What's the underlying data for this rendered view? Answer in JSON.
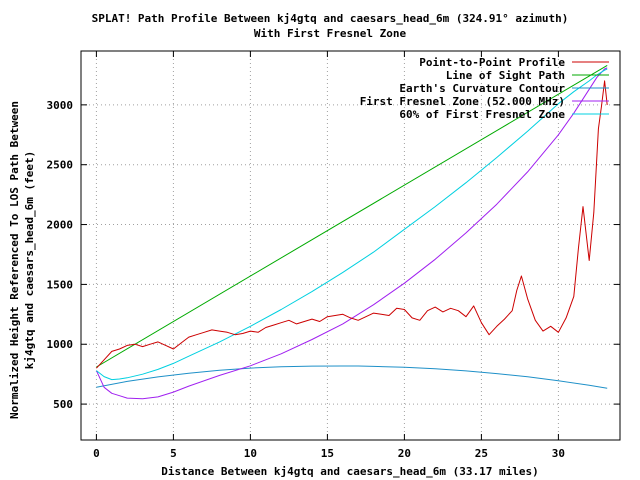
{
  "chart_data": {
    "type": "line",
    "title": "SPLAT! Path Profile Between kj4gtq and caesars_head_6m (324.91° azimuth)",
    "subtitle": "With First Fresnel Zone",
    "xlabel": "Distance Between kj4gtq and caesars_head_6m (33.17 miles)",
    "ylabel_line1": "Normalized Height Referenced To LOS Path Between",
    "ylabel_line2": "kj4gtq and caesars_head_6m (feet)",
    "xlim": [
      -1,
      34
    ],
    "ylim": [
      200,
      3450
    ],
    "xticks": [
      0,
      5,
      10,
      15,
      20,
      25,
      30
    ],
    "yticks": [
      500,
      1000,
      1500,
      2000,
      2500,
      3000
    ],
    "grid": true,
    "legend_position": "top-right",
    "series": [
      {
        "name": "Point-to-Point Profile",
        "color": "#cc0000",
        "x": [
          0,
          0.5,
          1,
          1.5,
          2,
          2.5,
          3,
          3.5,
          4,
          4.5,
          5,
          5.5,
          6,
          6.5,
          7,
          7.5,
          8,
          8.5,
          9,
          9.5,
          10,
          10.5,
          11,
          11.5,
          12,
          12.5,
          13,
          13.5,
          14,
          14.5,
          15,
          15.5,
          16,
          16.5,
          17,
          17.5,
          18,
          18.5,
          19,
          19.5,
          20,
          20.5,
          21,
          21.5,
          22,
          22.5,
          23,
          23.5,
          24,
          24.5,
          25,
          25.5,
          26,
          26.5,
          27,
          27.3,
          27.6,
          28,
          28.5,
          29,
          29.5,
          30,
          30.5,
          31,
          31.3,
          31.6,
          32,
          32.3,
          32.6,
          32.8,
          33,
          33.17
        ],
        "y": [
          800,
          870,
          940,
          960,
          990,
          1000,
          980,
          1000,
          1020,
          990,
          960,
          1010,
          1060,
          1080,
          1100,
          1120,
          1110,
          1100,
          1080,
          1090,
          1110,
          1100,
          1140,
          1160,
          1180,
          1200,
          1170,
          1190,
          1210,
          1190,
          1230,
          1240,
          1250,
          1220,
          1200,
          1230,
          1260,
          1250,
          1240,
          1300,
          1290,
          1220,
          1200,
          1280,
          1310,
          1270,
          1300,
          1280,
          1230,
          1320,
          1180,
          1080,
          1150,
          1210,
          1280,
          1450,
          1570,
          1380,
          1200,
          1110,
          1150,
          1100,
          1220,
          1400,
          1800,
          2150,
          1700,
          2100,
          2800,
          2990,
          3200,
          3000
        ]
      },
      {
        "name": "Line of Sight Path",
        "color": "#00aa00",
        "x": [
          0,
          33.17
        ],
        "y": [
          810,
          3330
        ]
      },
      {
        "name": "Earth's Curvature Contour",
        "color": "#1e90c8",
        "x": [
          0,
          2,
          4,
          6,
          8,
          10,
          12,
          14,
          16,
          17,
          18,
          20,
          22,
          24,
          26,
          28,
          30,
          32,
          33.17
        ],
        "y": [
          640,
          690,
          727,
          757,
          782,
          801,
          812,
          817,
          818,
          818,
          815,
          807,
          795,
          777,
          755,
          728,
          695,
          657,
          632
        ]
      },
      {
        "name": "First Fresnel Zone (52.000 MHz)",
        "color": "#a020f0",
        "x": [
          0,
          0.5,
          1,
          1.5,
          2,
          3,
          4,
          5,
          6,
          8,
          10,
          12,
          14,
          16,
          18,
          20,
          22,
          24,
          26,
          28,
          30,
          31,
          32,
          32.5,
          33,
          33.17
        ],
        "y": [
          780,
          640,
          590,
          570,
          550,
          545,
          560,
          600,
          650,
          740,
          820,
          920,
          1040,
          1170,
          1330,
          1510,
          1710,
          1930,
          2170,
          2440,
          2750,
          2930,
          3130,
          3230,
          3300,
          3310
        ]
      },
      {
        "name": "60% of First Fresnel Zone",
        "color": "#00d0e0",
        "x": [
          0,
          0.5,
          1,
          1.5,
          2,
          3,
          4,
          5,
          6,
          8,
          10,
          12,
          14,
          16,
          18,
          20,
          22,
          24,
          26,
          28,
          30,
          31,
          32,
          32.5,
          33,
          33.17
        ],
        "y": [
          780,
          730,
          705,
          710,
          720,
          750,
          790,
          840,
          900,
          1020,
          1150,
          1290,
          1440,
          1600,
          1770,
          1960,
          2150,
          2350,
          2560,
          2780,
          3010,
          3110,
          3200,
          3250,
          3290,
          3300
        ]
      }
    ]
  },
  "ticks": {
    "x_labels": [
      "0",
      "5",
      "10",
      "15",
      "20",
      "25",
      "30"
    ],
    "y_labels": [
      "500",
      "1000",
      "1500",
      "2000",
      "2500",
      "3000"
    ]
  }
}
